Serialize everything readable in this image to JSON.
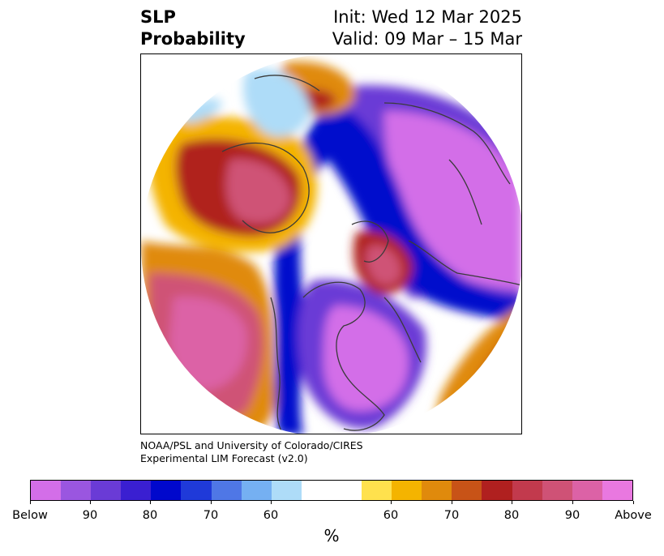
{
  "title": {
    "left_line1": "SLP",
    "left_line2": "Probability",
    "right_line1": "Init: Wed 12 Mar 2025",
    "right_line2": "Valid: 09 Mar – 15 Mar"
  },
  "credit": {
    "line1": "NOAA/PSL and University of Colorado/CIRES",
    "line2": "Experimental LIM Forecast (v2.0)"
  },
  "colorbar": {
    "unit": "%",
    "colors": [
      "#d36ee8",
      "#9a56e0",
      "#6a3bd6",
      "#3a1fd1",
      "#0008cc",
      "#1f3ad9",
      "#4f77e6",
      "#75b0f2",
      "#aedcf8",
      "#ffffff",
      "#ffe14d",
      "#f4b400",
      "#e08a0c",
      "#c85317",
      "#b0201f",
      "#c23a4d",
      "#cf5276",
      "#dc62a6",
      "#e978e0"
    ],
    "tick_labels": [
      "Below",
      "90",
      "80",
      "70",
      "60",
      "60",
      "70",
      "80",
      "90",
      "Above"
    ]
  },
  "map": {
    "colors": {
      "ocean_bg": "#ffffff",
      "coast": "#3b3b3b",
      "deep_blue": "#0008cc",
      "purple": "#6a3bd6",
      "magenta": "#d36ee8",
      "light_blue": "#aedcf8",
      "yellow": "#ffe14d",
      "orange": "#e08a0c",
      "red": "#b0201f",
      "pink": "#cf5276"
    }
  }
}
